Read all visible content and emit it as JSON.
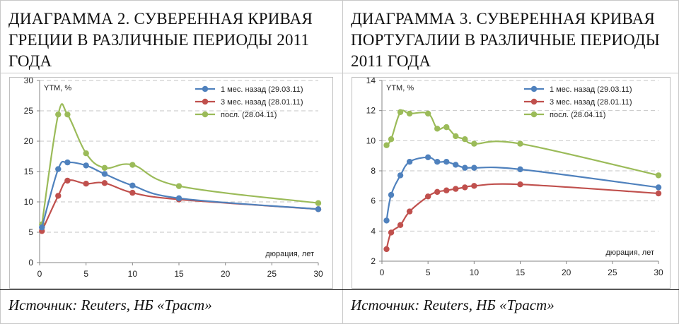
{
  "titles": {
    "left": "ДИАГРАММА 2. СУВЕРЕННАЯ КРИВАЯ ГРЕЦИИ В РАЗЛИЧНЫЕ ПЕРИОДЫ 2011 ГОДА",
    "right": "ДИАГРАММА 3. СУВЕРЕННАЯ КРИВАЯ ПОРТУГАЛИИ В РАЗЛИЧНЫЕ ПЕРИОДЫ 2011 ГОДА"
  },
  "sources": {
    "left": "Источник: Reuters, НБ «Траст»",
    "right": "Источник: Reuters, НБ «Траст»"
  },
  "chart_data": [
    {
      "type": "line",
      "ylabel": "YTM, %",
      "xlabel": "дюрация, лет",
      "xlim": [
        0,
        30
      ],
      "ylim": [
        0,
        30
      ],
      "xticks": [
        0,
        5,
        10,
        15,
        20,
        25,
        30
      ],
      "yticks": [
        0,
        5,
        10,
        15,
        20,
        25,
        30
      ],
      "grid": true,
      "legend": "top-right",
      "series": [
        {
          "name": "1 мес. назад (29.03.11)",
          "color": "#4f81bd",
          "x": [
            0.25,
            2,
            3,
            5,
            7,
            10,
            15,
            30
          ],
          "y": [
            5.8,
            15.4,
            16.5,
            16.0,
            14.6,
            12.7,
            10.6,
            8.8
          ]
        },
        {
          "name": "3 мес. назад (28.01.11)",
          "color": "#c0504d",
          "x": [
            0.25,
            2,
            3,
            5,
            7,
            10,
            15,
            30
          ],
          "y": [
            5.2,
            11.0,
            13.5,
            13.0,
            13.1,
            11.5,
            10.4,
            8.8
          ]
        },
        {
          "name": "посл. (28.04.11)",
          "color": "#9bbb59",
          "x": [
            0.25,
            2,
            3,
            5,
            7,
            10,
            15,
            30
          ],
          "y": [
            6.3,
            24.4,
            24.4,
            18.0,
            15.6,
            16.1,
            12.6,
            9.8
          ]
        }
      ]
    },
    {
      "type": "line",
      "ylabel": "YTM, %",
      "xlabel": "дюрация, лет",
      "xlim": [
        0,
        30
      ],
      "ylim": [
        2,
        14
      ],
      "xticks": [
        0,
        5,
        10,
        15,
        20,
        25,
        30
      ],
      "yticks": [
        2,
        4,
        6,
        8,
        10,
        12,
        14
      ],
      "grid": true,
      "legend": "top-right",
      "series": [
        {
          "name": "1 мес. назад (29.03.11)",
          "color": "#4f81bd",
          "x": [
            0.5,
            1,
            2,
            3,
            5,
            6,
            7,
            8,
            9,
            10,
            15,
            30
          ],
          "y": [
            4.7,
            6.4,
            7.7,
            8.6,
            8.9,
            8.6,
            8.6,
            8.4,
            8.2,
            8.2,
            8.1,
            6.9
          ]
        },
        {
          "name": "3 мес. назад (28.01.11)",
          "color": "#c0504d",
          "x": [
            0.5,
            1,
            2,
            3,
            5,
            6,
            7,
            8,
            9,
            10,
            15,
            30
          ],
          "y": [
            2.8,
            3.9,
            4.4,
            5.3,
            6.3,
            6.6,
            6.7,
            6.8,
            6.9,
            7.0,
            7.1,
            6.5
          ]
        },
        {
          "name": "посл. (28.04.11)",
          "color": "#9bbb59",
          "x": [
            0.5,
            1,
            2,
            3,
            5,
            6,
            7,
            8,
            9,
            10,
            15,
            30
          ],
          "y": [
            9.7,
            10.1,
            11.9,
            11.8,
            11.8,
            10.8,
            10.9,
            10.3,
            10.1,
            9.8,
            9.8,
            7.7
          ]
        }
      ]
    }
  ]
}
